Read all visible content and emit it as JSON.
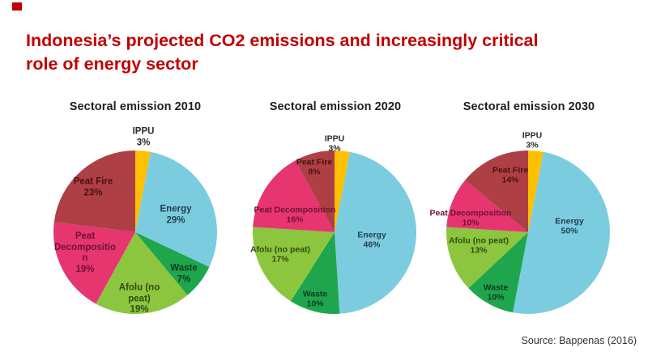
{
  "logo_color": "#C00000",
  "header": {
    "title": "Indonesia’s projected CO2 emissions and increasingly critical\nrole of energy sector",
    "color": "#C00000"
  },
  "source": "Source: Bappenas (2016)",
  "chart_data": [
    {
      "type": "pie",
      "title": {
        "prefix": "Sectoral emission",
        "year": "2010"
      },
      "start_angle_deg": 0,
      "direction": "clockwise",
      "label_size": 11.5,
      "slices": [
        {
          "name": "IPPU",
          "value": 3,
          "color": "#FFC000",
          "label": "IPPU\n3%",
          "label_color": "#2b2b2b",
          "label_pos": [
            136,
            48
          ],
          "label_outside": true
        },
        {
          "name": "Energy",
          "value": 29,
          "color": "#7CCCE0",
          "label": "Energy\n29%",
          "label_color": "#21414e",
          "label_pos": [
            176,
            144
          ]
        },
        {
          "name": "Waste",
          "value": 7,
          "color": "#1FA64D",
          "label": "Waste\n7%",
          "label_color": "#0d3a20",
          "label_pos": [
            186,
            217
          ]
        },
        {
          "name": "Afolu (no peat)",
          "value": 19,
          "color": "#8CC63F",
          "label": "Afolu (no\npeat)\n19%",
          "label_color": "#33490f",
          "label_pos": [
            131,
            248
          ]
        },
        {
          "name": "Peat Decomposition",
          "value": 19,
          "color": "#E7356F",
          "label": "Peat\nDecompositio\nn\n19%",
          "label_color": "#6d1333",
          "label_pos": [
            64,
            191
          ]
        },
        {
          "name": "Peat Fire",
          "value": 23,
          "color": "#AE4045",
          "label": "Peat Fire\n23%",
          "label_color": "#491013",
          "label_pos": [
            74,
            110
          ]
        }
      ]
    },
    {
      "type": "pie",
      "title": {
        "prefix": "Sectoral emission",
        "year": "2020"
      },
      "start_angle_deg": 0,
      "direction": "clockwise",
      "label_size": 10.5,
      "slices": [
        {
          "name": "IPPU",
          "value": 3,
          "color": "#FFC000",
          "label": "IPPU\n3%",
          "label_color": "#2b2b2b",
          "label_pos": [
            125,
            56
          ],
          "label_outside": true
        },
        {
          "name": "Energy",
          "value": 46,
          "color": "#7CCCE0",
          "label": "Energy\n46%",
          "label_color": "#21414e",
          "label_pos": [
            171,
            175
          ]
        },
        {
          "name": "Waste",
          "value": 10,
          "color": "#1FA64D",
          "label": "Waste\n10%",
          "label_color": "#0d3a20",
          "label_pos": [
            101,
            248
          ]
        },
        {
          "name": "Afolu (no peat)",
          "value": 17,
          "color": "#8CC63F",
          "label": "Afolu (no peat)\n17%",
          "label_color": "#33490f",
          "label_pos": [
            58,
            193
          ]
        },
        {
          "name": "Peat Decomposition",
          "value": 16,
          "color": "#E7356F",
          "label": "Peat Decomposition\n16%",
          "label_color": "#6d1333",
          "label_pos": [
            76,
            144
          ]
        },
        {
          "name": "Peat Fire",
          "value": 8,
          "color": "#AE4045",
          "label": "Peat Fire\n8%",
          "label_color": "#491013",
          "label_pos": [
            100,
            85
          ]
        }
      ]
    },
    {
      "type": "pie",
      "title": {
        "prefix": "Sectoral emission",
        "year": "2030"
      },
      "start_angle_deg": 0,
      "direction": "clockwise",
      "label_size": 10.5,
      "slices": [
        {
          "name": "IPPU",
          "value": 3,
          "color": "#FFC000",
          "label": "IPPU\n3%",
          "label_color": "#2b2b2b",
          "label_pos": [
            130,
            52
          ],
          "label_outside": true
        },
        {
          "name": "Energy",
          "value": 50,
          "color": "#7CCCE0",
          "label": "Energy\n50%",
          "label_color": "#21414e",
          "label_pos": [
            176,
            158
          ]
        },
        {
          "name": "Waste",
          "value": 10,
          "color": "#1FA64D",
          "label": "Waste\n10%",
          "label_color": "#0d3a20",
          "label_pos": [
            85,
            240
          ]
        },
        {
          "name": "Afolu (no peat)",
          "value": 13,
          "color": "#8CC63F",
          "label": "Afolu (no peat)\n13%",
          "label_color": "#33490f",
          "label_pos": [
            64,
            182
          ]
        },
        {
          "name": "Peat Decomposition",
          "value": 10,
          "color": "#E7356F",
          "label": "Peat Decomposition\n10%",
          "label_color": "#6d1333",
          "label_pos": [
            54,
            148
          ]
        },
        {
          "name": "Peat Fire",
          "value": 14,
          "color": "#AE4045",
          "label": "Peat Fire\n14%",
          "label_color": "#491013",
          "label_pos": [
            103,
            95
          ]
        }
      ]
    }
  ]
}
